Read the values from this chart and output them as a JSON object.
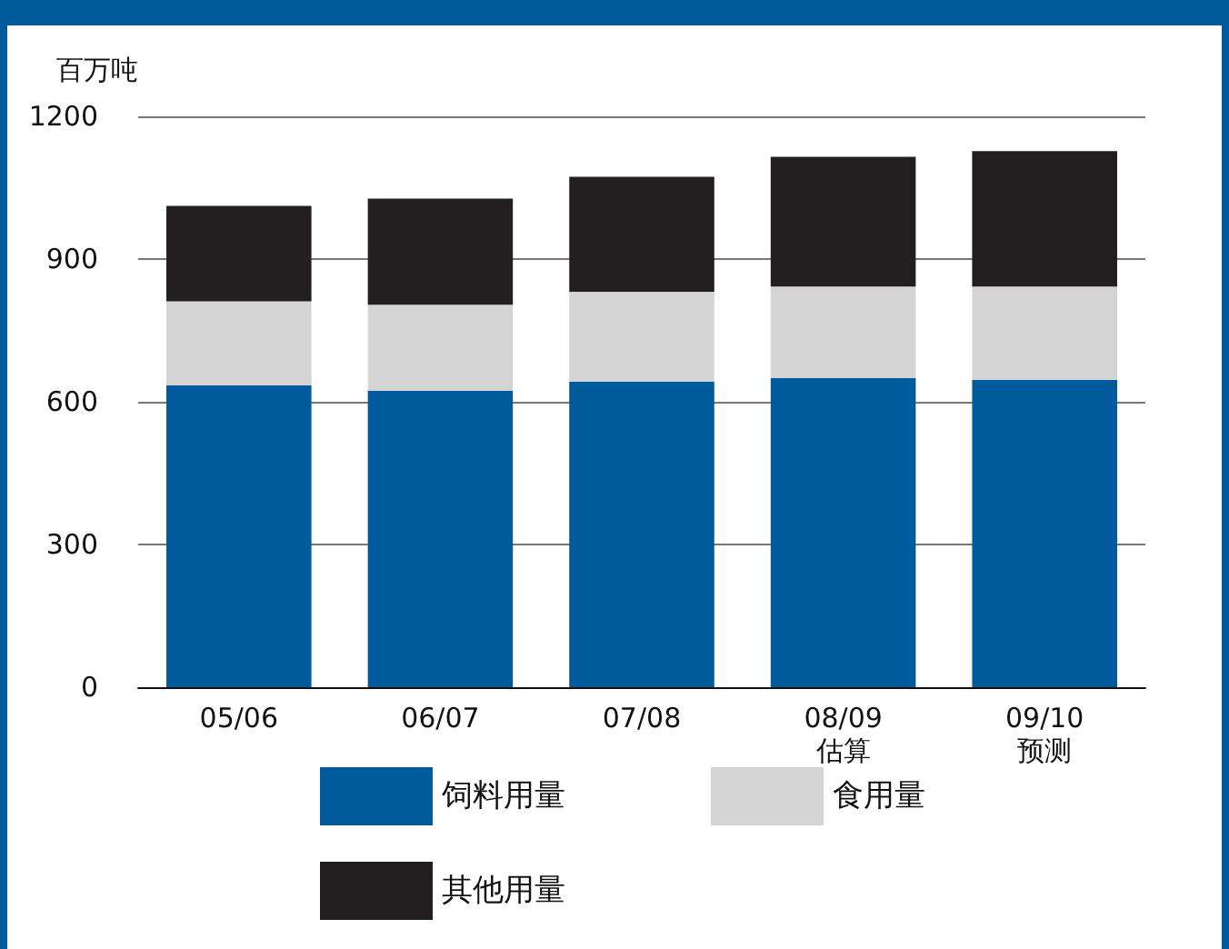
{
  "chart_data": {
    "type": "bar",
    "stacked": true,
    "ylabel": "百万吨",
    "categories": [
      "05/06",
      "06/07",
      "07/08",
      "08/09\n估算",
      "09/10\n预测"
    ],
    "series": [
      {
        "name": "饲料用量",
        "color": "#005a9c",
        "values": [
          635,
          623,
          642,
          650,
          646
        ]
      },
      {
        "name": "食用量",
        "color": "#d4d4d4",
        "values": [
          176,
          181,
          189,
          192,
          196
        ]
      },
      {
        "name": "其他用量",
        "color": "#231f20",
        "values": [
          201,
          223,
          242,
          273,
          285
        ]
      }
    ],
    "ylim": [
      0,
      1200
    ],
    "yticks": [
      0,
      300,
      600,
      900,
      {
        "value": 1200,
        "label": "1200"
      }
    ],
    "grid": "y",
    "legend": "bottom"
  }
}
